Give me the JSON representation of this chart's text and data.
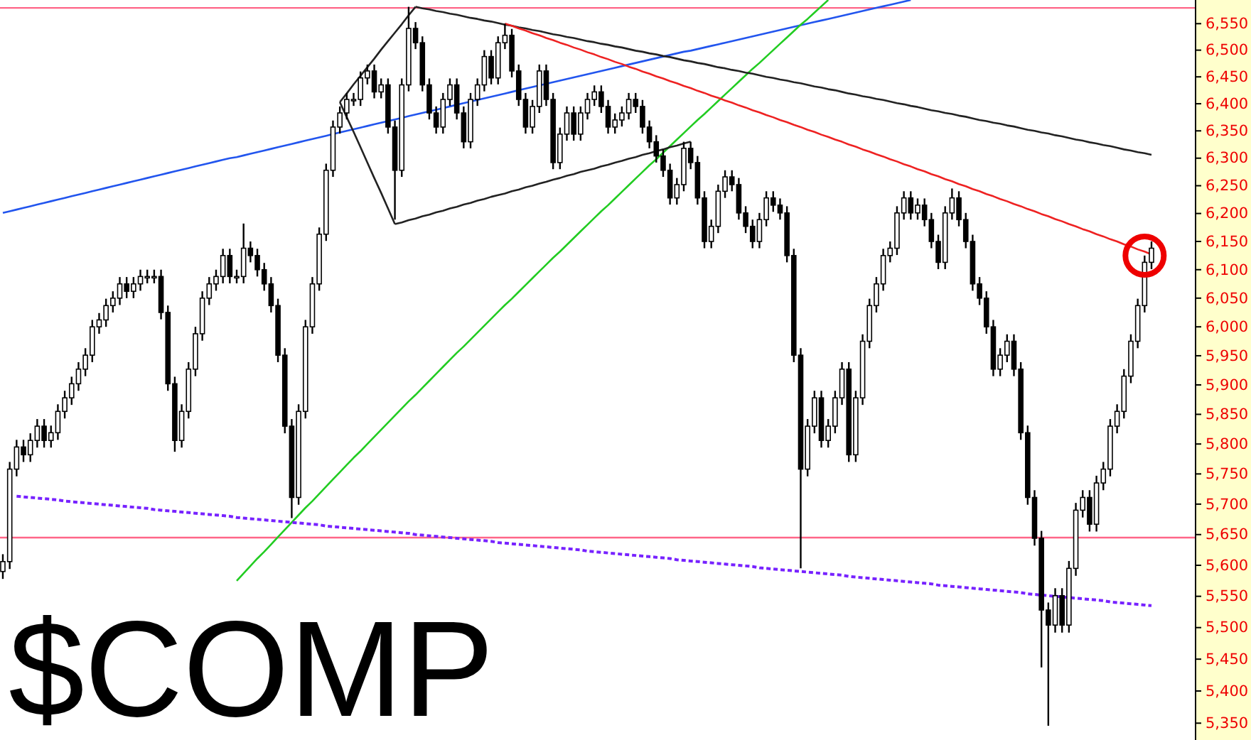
{
  "chart_data": {
    "type": "candlestick",
    "title": "$COMP",
    "log": true,
    "tick_labels": "y",
    "ylim": [
      5324,
      6595
    ],
    "yticks": [
      {
        "value": 5350,
        "label": "5,350"
      },
      {
        "value": 5400,
        "label": "5,400"
      },
      {
        "value": 5450,
        "label": "5,450"
      },
      {
        "value": 5500,
        "label": "5,500"
      },
      {
        "value": 5550,
        "label": "5,550"
      },
      {
        "value": 5600,
        "label": "5,600"
      },
      {
        "value": 5650,
        "label": "5,650"
      },
      {
        "value": 5700,
        "label": "5,700"
      },
      {
        "value": 5750,
        "label": "5,750"
      },
      {
        "value": 5800,
        "label": "5,800"
      },
      {
        "value": 5850,
        "label": "5,850"
      },
      {
        "value": 5900,
        "label": "5,900"
      },
      {
        "value": 5950,
        "label": "5,950"
      },
      {
        "value": 6000,
        "label": "6,000"
      },
      {
        "value": 6050,
        "label": "6,050"
      },
      {
        "value": 6100,
        "label": "6,100"
      },
      {
        "value": 6150,
        "label": "6,150"
      },
      {
        "value": 6200,
        "label": "6,200"
      },
      {
        "value": 6250,
        "label": "6,250"
      },
      {
        "value": 6300,
        "label": "6,300"
      },
      {
        "value": 6350,
        "label": "6,350"
      },
      {
        "value": 6400,
        "label": "6,400"
      },
      {
        "value": 6450,
        "label": "6,450"
      },
      {
        "value": 6500,
        "label": "6,500"
      },
      {
        "value": 6550,
        "label": "6,550"
      }
    ],
    "categories": [
      null,
      null,
      null,
      null,
      null,
      null,
      null,
      null,
      null,
      null,
      null,
      null,
      null,
      null,
      null,
      null,
      null,
      null,
      null,
      null,
      null,
      null,
      null,
      null,
      null,
      null,
      null,
      null,
      null,
      null,
      null,
      null,
      null,
      null,
      null,
      null,
      null,
      null,
      null,
      null,
      null,
      null,
      null,
      null,
      null,
      null,
      null,
      null,
      null,
      null,
      null,
      null,
      null,
      null,
      null,
      null,
      null,
      null,
      null,
      null,
      null,
      null,
      null,
      null,
      null,
      null,
      null,
      null,
      null,
      null,
      null,
      null,
      null,
      null,
      null,
      null,
      null,
      null,
      null,
      null,
      null,
      null,
      null,
      null,
      null,
      null,
      null,
      null,
      null,
      null,
      null,
      null,
      null,
      null,
      null,
      null,
      null,
      null,
      null,
      null,
      null,
      null,
      null,
      null,
      null,
      null,
      null,
      null,
      null,
      null,
      null,
      null,
      null,
      null,
      null,
      null,
      null,
      null,
      null,
      null,
      null,
      null,
      null,
      null,
      null,
      null,
      null,
      null,
      null,
      null,
      null,
      null,
      null,
      null,
      null,
      null,
      null,
      null,
      null,
      null,
      null,
      null,
      null,
      null,
      null,
      null,
      null,
      null,
      null,
      null,
      null,
      null,
      null,
      null,
      null,
      null,
      null,
      null,
      null,
      null,
      null,
      null,
      null,
      null,
      null,
      null,
      null,
      null
    ],
    "ohlc": [
      [
        5590,
        5618,
        5578,
        5606
      ],
      [
        5606,
        5770,
        5594,
        5758
      ],
      [
        5758,
        5807,
        5746,
        5795
      ],
      [
        5795,
        5807,
        5770,
        5782
      ],
      [
        5782,
        5818,
        5770,
        5806
      ],
      [
        5806,
        5842,
        5794,
        5830
      ],
      [
        5830,
        5842,
        5794,
        5806
      ],
      [
        5806,
        5831,
        5794,
        5819
      ],
      [
        5819,
        5867,
        5807,
        5855
      ],
      [
        5855,
        5890,
        5843,
        5878
      ],
      [
        5878,
        5914,
        5866,
        5902
      ],
      [
        5902,
        5939,
        5890,
        5927
      ],
      [
        5927,
        5963,
        5915,
        5951
      ],
      [
        5951,
        6012,
        5939,
        6000
      ],
      [
        6000,
        6024,
        5988,
        6012
      ],
      [
        6012,
        6049,
        6000,
        6037
      ],
      [
        6037,
        6062,
        6025,
        6050
      ],
      [
        6050,
        6087,
        6038,
        6075
      ],
      [
        6075,
        6087,
        6050,
        6062
      ],
      [
        6062,
        6087,
        6050,
        6075
      ],
      [
        6075,
        6100,
        6063,
        6088
      ],
      [
        6088,
        6100,
        6076,
        6088
      ],
      [
        6088,
        6100,
        6076,
        6088
      ],
      [
        6088,
        6100,
        6013,
        6025
      ],
      [
        6025,
        6037,
        5890,
        5902
      ],
      [
        5902,
        5914,
        5787,
        5806
      ],
      [
        5806,
        5867,
        5794,
        5855
      ],
      [
        5855,
        5939,
        5843,
        5927
      ],
      [
        5927,
        6000,
        5915,
        5988
      ],
      [
        5988,
        6062,
        5976,
        6050
      ],
      [
        6050,
        6087,
        6038,
        6075
      ],
      [
        6075,
        6100,
        6063,
        6088
      ],
      [
        6088,
        6137,
        6076,
        6125
      ],
      [
        6125,
        6137,
        6076,
        6088
      ],
      [
        6088,
        6100,
        6076,
        6088
      ],
      [
        6088,
        6182,
        6076,
        6138
      ],
      [
        6138,
        6150,
        6113,
        6125
      ],
      [
        6125,
        6137,
        6088,
        6100
      ],
      [
        6100,
        6112,
        6063,
        6075
      ],
      [
        6075,
        6087,
        6025,
        6037
      ],
      [
        6037,
        6049,
        5939,
        5951
      ],
      [
        5951,
        5963,
        5818,
        5830
      ],
      [
        5830,
        5842,
        5677,
        5711
      ],
      [
        5711,
        5867,
        5699,
        5855
      ],
      [
        5855,
        6012,
        5843,
        6000
      ],
      [
        6000,
        6087,
        5988,
        6075
      ],
      [
        6075,
        6175,
        6063,
        6163
      ],
      [
        6163,
        6290,
        6151,
        6278
      ],
      [
        6278,
        6369,
        6266,
        6357
      ],
      [
        6357,
        6395,
        6345,
        6383
      ],
      [
        6383,
        6420,
        6371,
        6408
      ],
      [
        6408,
        6420,
        6396,
        6408
      ],
      [
        6408,
        6460,
        6396,
        6448
      ],
      [
        6448,
        6473,
        6436,
        6461
      ],
      [
        6461,
        6473,
        6410,
        6422
      ],
      [
        6422,
        6447,
        6410,
        6435
      ],
      [
        6435,
        6447,
        6345,
        6357
      ],
      [
        6357,
        6369,
        6189,
        6278
      ],
      [
        6278,
        6447,
        6266,
        6435
      ],
      [
        6435,
        6582,
        6423,
        6541
      ],
      [
        6541,
        6553,
        6502,
        6514
      ],
      [
        6514,
        6526,
        6423,
        6435
      ],
      [
        6435,
        6447,
        6371,
        6383
      ],
      [
        6383,
        6395,
        6345,
        6357
      ],
      [
        6357,
        6420,
        6345,
        6408
      ],
      [
        6408,
        6447,
        6396,
        6435
      ],
      [
        6435,
        6447,
        6371,
        6383
      ],
      [
        6383,
        6395,
        6318,
        6330
      ],
      [
        6330,
        6420,
        6318,
        6408
      ],
      [
        6408,
        6447,
        6396,
        6435
      ],
      [
        6435,
        6500,
        6423,
        6488
      ],
      [
        6488,
        6500,
        6436,
        6448
      ],
      [
        6448,
        6526,
        6436,
        6514
      ],
      [
        6514,
        6550,
        6502,
        6528
      ],
      [
        6528,
        6540,
        6449,
        6461
      ],
      [
        6461,
        6473,
        6396,
        6408
      ],
      [
        6408,
        6420,
        6345,
        6357
      ],
      [
        6357,
        6407,
        6345,
        6395
      ],
      [
        6395,
        6473,
        6383,
        6461
      ],
      [
        6461,
        6473,
        6396,
        6408
      ],
      [
        6408,
        6420,
        6280,
        6292
      ],
      [
        6292,
        6356,
        6280,
        6344
      ],
      [
        6344,
        6395,
        6332,
        6383
      ],
      [
        6383,
        6395,
        6332,
        6344
      ],
      [
        6344,
        6395,
        6332,
        6383
      ],
      [
        6383,
        6420,
        6371,
        6408
      ],
      [
        6408,
        6434,
        6396,
        6422
      ],
      [
        6422,
        6434,
        6383,
        6395
      ],
      [
        6395,
        6407,
        6345,
        6357
      ],
      [
        6357,
        6382,
        6345,
        6370
      ],
      [
        6370,
        6395,
        6358,
        6383
      ],
      [
        6383,
        6420,
        6371,
        6408
      ],
      [
        6408,
        6420,
        6383,
        6395
      ],
      [
        6395,
        6407,
        6345,
        6357
      ],
      [
        6357,
        6369,
        6318,
        6330
      ],
      [
        6330,
        6342,
        6292,
        6304
      ],
      [
        6304,
        6316,
        6266,
        6278
      ],
      [
        6278,
        6290,
        6216,
        6228
      ],
      [
        6228,
        6264,
        6216,
        6252
      ],
      [
        6252,
        6330,
        6240,
        6318
      ],
      [
        6318,
        6330,
        6280,
        6292
      ],
      [
        6292,
        6304,
        6216,
        6228
      ],
      [
        6228,
        6240,
        6138,
        6150
      ],
      [
        6150,
        6189,
        6138,
        6177
      ],
      [
        6177,
        6252,
        6165,
        6240
      ],
      [
        6240,
        6278,
        6228,
        6266
      ],
      [
        6266,
        6278,
        6240,
        6252
      ],
      [
        6252,
        6264,
        6189,
        6201
      ],
      [
        6201,
        6213,
        6165,
        6177
      ],
      [
        6177,
        6189,
        6138,
        6150
      ],
      [
        6150,
        6201,
        6138,
        6189
      ],
      [
        6189,
        6240,
        6177,
        6228
      ],
      [
        6228,
        6240,
        6203,
        6215
      ],
      [
        6215,
        6227,
        6189,
        6201
      ],
      [
        6201,
        6213,
        6113,
        6125
      ],
      [
        6125,
        6137,
        5939,
        5951
      ],
      [
        5951,
        5963,
        5595,
        5758
      ],
      [
        5758,
        5842,
        5746,
        5830
      ],
      [
        5830,
        5890,
        5818,
        5878
      ],
      [
        5878,
        5890,
        5794,
        5806
      ],
      [
        5806,
        5842,
        5794,
        5830
      ],
      [
        5830,
        5890,
        5818,
        5878
      ],
      [
        5878,
        5939,
        5866,
        5927
      ],
      [
        5927,
        5939,
        5770,
        5782
      ],
      [
        5782,
        5890,
        5770,
        5878
      ],
      [
        5878,
        5987,
        5866,
        5975
      ],
      [
        5975,
        6049,
        5963,
        6037
      ],
      [
        6037,
        6087,
        6025,
        6075
      ],
      [
        6075,
        6137,
        6063,
        6125
      ],
      [
        6125,
        6150,
        6113,
        6138
      ],
      [
        6138,
        6213,
        6126,
        6201
      ],
      [
        6201,
        6240,
        6189,
        6228
      ],
      [
        6228,
        6240,
        6189,
        6201
      ],
      [
        6201,
        6227,
        6189,
        6215
      ],
      [
        6215,
        6227,
        6177,
        6189
      ],
      [
        6189,
        6201,
        6138,
        6150
      ],
      [
        6150,
        6162,
        6101,
        6113
      ],
      [
        6113,
        6213,
        6101,
        6201
      ],
      [
        6201,
        6245,
        6189,
        6228
      ],
      [
        6228,
        6240,
        6177,
        6189
      ],
      [
        6189,
        6201,
        6138,
        6150
      ],
      [
        6150,
        6162,
        6063,
        6075
      ],
      [
        6075,
        6087,
        6038,
        6050
      ],
      [
        6050,
        6062,
        5988,
        6000
      ],
      [
        6000,
        6012,
        5915,
        5927
      ],
      [
        5927,
        5963,
        5915,
        5951
      ],
      [
        5951,
        5987,
        5939,
        5975
      ],
      [
        5975,
        5987,
        5915,
        5927
      ],
      [
        5927,
        5939,
        5807,
        5819
      ],
      [
        5819,
        5831,
        5699,
        5711
      ],
      [
        5711,
        5723,
        5632,
        5644
      ],
      [
        5644,
        5656,
        5437,
        5528
      ],
      [
        5528,
        5540,
        5346,
        5504
      ],
      [
        5504,
        5563,
        5492,
        5551
      ],
      [
        5551,
        5563,
        5492,
        5504
      ],
      [
        5504,
        5607,
        5492,
        5595
      ],
      [
        5595,
        5702,
        5583,
        5690
      ],
      [
        5690,
        5723,
        5678,
        5711
      ],
      [
        5711,
        5723,
        5655,
        5667
      ],
      [
        5667,
        5747,
        5655,
        5735
      ],
      [
        5735,
        5770,
        5723,
        5758
      ],
      [
        5758,
        5842,
        5746,
        5830
      ],
      [
        5830,
        5867,
        5818,
        5855
      ],
      [
        5855,
        5927,
        5843,
        5915
      ],
      [
        5915,
        5987,
        5903,
        5975
      ],
      [
        5975,
        6049,
        5963,
        6037
      ],
      [
        6037,
        6125,
        6025,
        6113
      ],
      [
        6113,
        6150,
        6101,
        6138
      ]
    ],
    "series": [
      {
        "type": "line",
        "color": "#2255ee",
        "values": [
          6201,
          6204,
          6207,
          6210,
          6213,
          6216,
          6219,
          6222,
          6225,
          6228,
          6231,
          6234,
          6237,
          6240,
          6243,
          6246,
          6249,
          6252,
          6255,
          6258,
          6261,
          6264,
          6267,
          6270,
          6273,
          6276,
          6279,
          6282,
          6285,
          6288,
          6291,
          6294,
          6297,
          6300,
          6302,
          6305,
          6308,
          6311,
          6314,
          6317,
          6320,
          6323,
          6326,
          6329,
          6332,
          6335,
          6338,
          6341,
          6344,
          6347,
          6350,
          6353,
          6356,
          6359,
          6362,
          6365,
          6368,
          6371,
          6374,
          6377,
          6380,
          6383,
          6386,
          6389,
          6392,
          6395,
          6398,
          6401,
          6404,
          6407,
          6410,
          6413,
          6416,
          6419,
          6422,
          6425,
          6428,
          6431,
          6434,
          6437,
          6440,
          6443,
          6446,
          6449,
          6452,
          6455,
          6458,
          6461,
          6464,
          6467,
          6470,
          6473,
          6476,
          6479,
          6482,
          6485,
          6488,
          6491,
          6494,
          6497,
          6499,
          6502,
          6505,
          6508,
          6511,
          6514,
          6517,
          6520,
          6523,
          6526,
          6529,
          6532,
          6535,
          6538,
          6541,
          6544,
          6547,
          6550,
          6553,
          6556,
          6559,
          6562,
          6565,
          6568,
          6571,
          6574,
          6577,
          6580,
          6583,
          6586,
          6589,
          6592,
          6595,
          null,
          null,
          null,
          null,
          null,
          null,
          null,
          null,
          null,
          null,
          null,
          null,
          null,
          null,
          null,
          null,
          null,
          null,
          null,
          null,
          null,
          null,
          null,
          null,
          null,
          null,
          null,
          null,
          null,
          null,
          null,
          null,
          null,
          null,
          null
        ]
      },
      {
        "type": "line",
        "color": "#22cc22",
        "values": [
          null,
          null,
          null,
          null,
          null,
          null,
          null,
          null,
          null,
          null,
          null,
          null,
          null,
          null,
          null,
          null,
          null,
          null,
          null,
          null,
          null,
          null,
          null,
          null,
          null,
          null,
          null,
          null,
          null,
          null,
          null,
          null,
          null,
          null,
          5575,
          5587,
          5599,
          5611,
          5622,
          5634,
          5646,
          5658,
          5670,
          5682,
          5694,
          5705,
          5717,
          5729,
          5741,
          5753,
          5765,
          5777,
          5788,
          5800,
          5812,
          5824,
          5836,
          5848,
          5860,
          5872,
          5883,
          5895,
          5907,
          5919,
          5931,
          5943,
          5955,
          5966,
          5978,
          5990,
          6002,
          6014,
          6026,
          6038,
          6049,
          6061,
          6073,
          6085,
          6097,
          6109,
          6121,
          6132,
          6144,
          6156,
          6168,
          6180,
          6192,
          6204,
          6215,
          6227,
          6239,
          6251,
          6263,
          6275,
          6287,
          6298,
          6310,
          6322,
          6334,
          6346,
          6358,
          6370,
          6381,
          6393,
          6405,
          6417,
          6429,
          6441,
          6453,
          6465,
          6476,
          6488,
          6500,
          6512,
          6524,
          6536,
          6548,
          6559,
          6571,
          6583,
          6595,
          null,
          null,
          null,
          null,
          null,
          null,
          null,
          null,
          null,
          null,
          null,
          null,
          null,
          null,
          null,
          null,
          null,
          null,
          null,
          null,
          null,
          null,
          null,
          null,
          null,
          null,
          null,
          null,
          null,
          null,
          null,
          null,
          null,
          null,
          null,
          null,
          null,
          null,
          null,
          null,
          null,
          null,
          null,
          null,
          null,
          null,
          null
        ]
      },
      {
        "type": "line",
        "color": "#222222",
        "values": [
          null,
          null,
          null,
          null,
          null,
          null,
          null,
          null,
          null,
          null,
          null,
          null,
          null,
          null,
          null,
          null,
          null,
          null,
          null,
          null,
          null,
          null,
          null,
          null,
          null,
          null,
          null,
          null,
          null,
          null,
          null,
          null,
          null,
          null,
          null,
          null,
          null,
          null,
          null,
          null,
          null,
          null,
          null,
          null,
          null,
          null,
          null,
          null,
          null,
          null,
          null,
          null,
          null,
          null,
          null,
          null,
          null,
          null,
          null,
          null,
          6582,
          6579,
          6577,
          6574,
          6572,
          6569,
          6567,
          6564,
          6561,
          6559,
          6556,
          6554,
          6551,
          6548,
          6546,
          6543,
          6541,
          6538,
          6536,
          6533,
          6530,
          6528,
          6525,
          6523,
          6520,
          6517,
          6515,
          6512,
          6510,
          6507,
          6505,
          6502,
          6499,
          6497,
          6494,
          6492,
          6489,
          6487,
          6484,
          6481,
          6479,
          6476,
          6474,
          6471,
          6468,
          6466,
          6463,
          6461,
          6458,
          6456,
          6453,
          6450,
          6448,
          6445,
          6443,
          6440,
          6438,
          6435,
          6432,
          6430,
          6427,
          6425,
          6422,
          6419,
          6417,
          6414,
          6412,
          6409,
          6407,
          6404,
          6401,
          6399,
          6396,
          6394,
          6391,
          6388,
          6386,
          6383,
          6381,
          6378,
          6376,
          6373,
          6370,
          6368,
          6365,
          6363,
          6360,
          6358,
          6355,
          6352,
          6350,
          6347,
          6345,
          6342,
          6340,
          6337,
          6334,
          6332,
          6329,
          6327,
          6324,
          6322,
          6319,
          6316,
          6314,
          6311,
          6309,
          6306
        ]
      },
      {
        "type": "line",
        "color": "#ee2222",
        "values": [
          null,
          null,
          null,
          null,
          null,
          null,
          null,
          null,
          null,
          null,
          null,
          null,
          null,
          null,
          null,
          null,
          null,
          null,
          null,
          null,
          null,
          null,
          null,
          null,
          null,
          null,
          null,
          null,
          null,
          null,
          null,
          null,
          null,
          null,
          null,
          null,
          null,
          null,
          null,
          null,
          null,
          null,
          null,
          null,
          null,
          null,
          null,
          null,
          null,
          null,
          null,
          null,
          null,
          null,
          null,
          null,
          null,
          null,
          null,
          null,
          null,
          null,
          null,
          null,
          null,
          null,
          null,
          null,
          null,
          null,
          null,
          null,
          null,
          6550,
          6546,
          6541,
          6537,
          6532,
          6528,
          6523,
          6519,
          6514,
          6510,
          6505,
          6501,
          6496,
          6492,
          6487,
          6483,
          6478,
          6474,
          6469,
          6465,
          6460,
          6456,
          6451,
          6447,
          6442,
          6438,
          6433,
          6429,
          6424,
          6420,
          6415,
          6411,
          6406,
          6402,
          6397,
          6393,
          6388,
          6384,
          6379,
          6375,
          6370,
          6366,
          6361,
          6357,
          6352,
          6348,
          6343,
          6339,
          6334,
          6330,
          6325,
          6321,
          6316,
          6312,
          6307,
          6303,
          6298,
          6294,
          6289,
          6285,
          6280,
          6276,
          6271,
          6267,
          6262,
          6258,
          6253,
          6249,
          6244,
          6240,
          6235,
          6231,
          6226,
          6222,
          6217,
          6213,
          6208,
          6204,
          6199,
          6195,
          6190,
          6186,
          6181,
          6177,
          6172,
          6168,
          6163,
          6159,
          6154,
          6150,
          6145,
          6141,
          6136,
          6132,
          6127
        ]
      },
      {
        "type": "line",
        "color": "#222222",
        "values": [
          null,
          null,
          null,
          null,
          null,
          null,
          null,
          null,
          null,
          null,
          null,
          null,
          null,
          null,
          null,
          null,
          null,
          null,
          null,
          null,
          null,
          null,
          null,
          null,
          null,
          null,
          null,
          null,
          null,
          null,
          null,
          null,
          null,
          null,
          null,
          null,
          null,
          null,
          null,
          null,
          null,
          null,
          null,
          null,
          null,
          null,
          null,
          null,
          null,
          6403,
          6419,
          6436,
          6452,
          6468,
          6484,
          6501,
          6517,
          6533,
          6549,
          6566,
          6582,
          null,
          null,
          null,
          null,
          null,
          null,
          null,
          null,
          null,
          null,
          null,
          null,
          null,
          null,
          null,
          null,
          null,
          null,
          null,
          null,
          null,
          null,
          null,
          null,
          null,
          null,
          null,
          null,
          null,
          null,
          null,
          null,
          null,
          null,
          null,
          null,
          null,
          null,
          null,
          null,
          null,
          null,
          null,
          null,
          null,
          null,
          null,
          null,
          null,
          null,
          null,
          null,
          null,
          null,
          null,
          null,
          null,
          null,
          null,
          null,
          null,
          null,
          null,
          null,
          null,
          null,
          null,
          null,
          null,
          null,
          null,
          null,
          null,
          null,
          null,
          null,
          null,
          null,
          null,
          null,
          null,
          null,
          null,
          null,
          null,
          null,
          null,
          null,
          null,
          null,
          null,
          null,
          null,
          null,
          null,
          null,
          null,
          null,
          null,
          null,
          null,
          null,
          null,
          null,
          null,
          null,
          null
        ]
      },
      {
        "type": "line",
        "color": "#222222",
        "values": [
          null,
          null,
          null,
          null,
          null,
          null,
          null,
          null,
          null,
          null,
          null,
          null,
          null,
          null,
          null,
          null,
          null,
          null,
          null,
          null,
          null,
          null,
          null,
          null,
          null,
          null,
          null,
          null,
          null,
          null,
          null,
          null,
          null,
          null,
          null,
          null,
          null,
          null,
          null,
          null,
          null,
          null,
          null,
          null,
          null,
          null,
          null,
          null,
          null,
          6403,
          6375,
          6348,
          6320,
          6292,
          6264,
          6237,
          6209,
          6181,
          null,
          null,
          null,
          null,
          null,
          null,
          null,
          null,
          null,
          null,
          null,
          null,
          null,
          null,
          null,
          null,
          null,
          null,
          null,
          null,
          null,
          null,
          null,
          null,
          null,
          null,
          null,
          null,
          null,
          null,
          null,
          null,
          null,
          null,
          null,
          null,
          null,
          null,
          null,
          null,
          null,
          null,
          null,
          null,
          null,
          null,
          null,
          null,
          null,
          null,
          null,
          null,
          null,
          null,
          null,
          null,
          null,
          null,
          null,
          null,
          null,
          null,
          null,
          null,
          null,
          null,
          null,
          null,
          null,
          null,
          null,
          null,
          null,
          null,
          null,
          null,
          null,
          null,
          null,
          null,
          null,
          null,
          null,
          null,
          null,
          null,
          null,
          null,
          null,
          null,
          null,
          null,
          null,
          null,
          null,
          null,
          null,
          null,
          null,
          null,
          null,
          null,
          null,
          null,
          null,
          null,
          null,
          null,
          null,
          null
        ]
      },
      {
        "type": "line",
        "color": "#222222",
        "values": [
          null,
          null,
          null,
          null,
          null,
          null,
          null,
          null,
          null,
          null,
          null,
          null,
          null,
          null,
          null,
          null,
          null,
          null,
          null,
          null,
          null,
          null,
          null,
          null,
          null,
          null,
          null,
          null,
          null,
          null,
          null,
          null,
          null,
          null,
          null,
          null,
          null,
          null,
          null,
          null,
          null,
          null,
          null,
          null,
          null,
          null,
          null,
          null,
          null,
          null,
          null,
          null,
          null,
          null,
          null,
          null,
          null,
          6181,
          6184,
          6188,
          6191,
          6195,
          6198,
          6202,
          6205,
          6209,
          6212,
          6216,
          6219,
          6223,
          6226,
          6230,
          6233,
          6236,
          6240,
          6243,
          6247,
          6250,
          6254,
          6257,
          6261,
          6264,
          6268,
          6271,
          6275,
          6278,
          6281,
          6285,
          6288,
          6292,
          6295,
          6299,
          6302,
          6306,
          6309,
          6313,
          6316,
          6320,
          6323,
          6327,
          6330,
          null,
          null,
          null,
          null,
          null,
          null,
          null,
          null,
          null,
          null,
          null,
          null,
          null,
          null,
          null,
          null,
          null,
          null,
          null,
          null,
          null,
          null,
          null,
          null,
          null,
          null,
          null,
          null,
          null,
          null,
          null,
          null,
          null,
          null,
          null,
          null,
          null,
          null,
          null,
          null,
          null,
          null,
          null,
          null,
          null,
          null,
          null,
          null,
          null,
          null,
          null,
          null,
          null,
          null,
          null,
          null,
          null,
          null,
          null,
          null,
          null,
          null,
          null,
          null,
          null,
          null,
          null
        ]
      },
      {
        "type": "line",
        "color": "#7722ff",
        "line_style": "dotted",
        "values": [
          null,
          null,
          5713,
          5712,
          5711,
          5710,
          5709,
          5708,
          5707,
          5705,
          5704,
          5703,
          5702,
          5701,
          5700,
          5699,
          5698,
          5697,
          5696,
          5695,
          5694,
          5693,
          5691,
          5690,
          5689,
          5688,
          5687,
          5686,
          5685,
          5684,
          5683,
          5682,
          5681,
          5680,
          5678,
          5677,
          5676,
          5675,
          5674,
          5673,
          5672,
          5671,
          5670,
          5669,
          5668,
          5667,
          5666,
          5664,
          5663,
          5662,
          5661,
          5660,
          5659,
          5658,
          5657,
          5656,
          5655,
          5654,
          5653,
          5652,
          5650,
          5649,
          5648,
          5647,
          5646,
          5645,
          5644,
          5643,
          5642,
          5641,
          5640,
          5639,
          5637,
          5636,
          5635,
          5634,
          5633,
          5632,
          5631,
          5630,
          5629,
          5628,
          5627,
          5626,
          5625,
          5623,
          5622,
          5621,
          5620,
          5619,
          5618,
          5617,
          5616,
          5615,
          5614,
          5613,
          5612,
          5611,
          5609,
          5608,
          5607,
          5606,
          5605,
          5604,
          5603,
          5602,
          5601,
          5600,
          5599,
          5598,
          5596,
          5595,
          5594,
          5593,
          5592,
          5591,
          5590,
          5589,
          5588,
          5587,
          5586,
          5585,
          5584,
          5582,
          5581,
          5580,
          5579,
          5578,
          5577,
          5576,
          5575,
          5574,
          5573,
          5572,
          5571,
          5570,
          5568,
          5567,
          5566,
          5565,
          5564,
          5563,
          5562,
          5561,
          5560,
          5559,
          5558,
          5557,
          5556,
          5554,
          5553,
          5552,
          5551,
          5550,
          5549,
          5548,
          5547,
          5546,
          5545,
          5544,
          5543,
          5541,
          5540,
          5539,
          5538,
          5537,
          5536,
          5535
        ]
      }
    ],
    "ref_lines": [
      {
        "axis": "y",
        "value": 6580,
        "color": "#ff6688"
      },
      {
        "axis": "y",
        "value": 5645,
        "color": "#ff6688"
      }
    ]
  }
}
